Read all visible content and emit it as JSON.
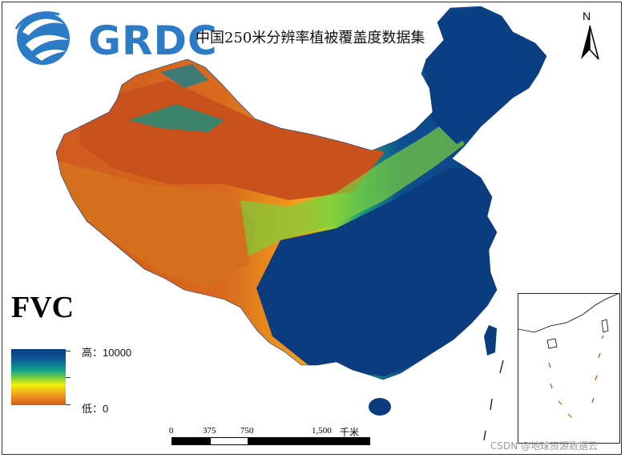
{
  "logo": {
    "text": "GRDC",
    "color": "#2b7bc6"
  },
  "title": "中国250米分辨率植被覆盖度数据集",
  "north_arrow": {
    "label": "N"
  },
  "legend": {
    "title": "FVC",
    "high": "高：10000",
    "low": "低：0",
    "colors": {
      "high": "#0b3c7f",
      "mid": "#10a08c",
      "yellow": "#f2f20a",
      "low": "#cf5a1f"
    }
  },
  "scale_bar": {
    "ticks": [
      "0",
      "375",
      "750",
      "1,500"
    ],
    "unit": "千米"
  },
  "watermark": "CSDN @地球资源数据云"
}
